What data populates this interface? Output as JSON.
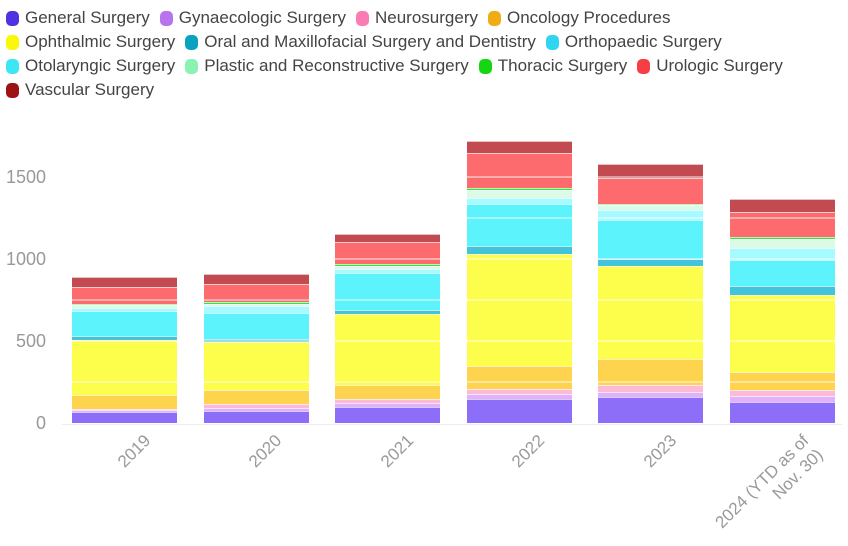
{
  "chart_data": {
    "type": "bar",
    "stacked": true,
    "title": "",
    "xlabel": "",
    "ylabel": "",
    "categories": [
      "2019",
      "2020",
      "2021",
      "2022",
      "2023",
      "2024 (YTD as of Nov. 30)"
    ],
    "series": [
      {
        "name": "General Surgery",
        "color": "#5132e0",
        "bar_color": "#8d6ef8",
        "values": [
          67,
          73,
          97,
          148,
          158,
          130
        ]
      },
      {
        "name": "Gynaecologic Surgery",
        "color": "#b873ee",
        "bar_color": "#e2b2f8",
        "values": [
          11,
          21,
          27,
          30,
          30,
          34
        ]
      },
      {
        "name": "Neurosurgery",
        "color": "#fa7cb3",
        "bar_color": "#fcbad7",
        "values": [
          10,
          24,
          24,
          30,
          41,
          35
        ]
      },
      {
        "name": "Oncology Procedures",
        "color": "#f0ac15",
        "bar_color": "#fed34d",
        "values": [
          81,
          81,
          81,
          142,
          162,
          111
        ]
      },
      {
        "name": "Ophthalmic Surgery",
        "color": "#f8f807",
        "bar_color": "#fdfd4b",
        "values": [
          339,
          294,
          436,
          683,
          567,
          471
        ]
      },
      {
        "name": "Oral and Maxillofacial Surgery and Dentistry",
        "color": "#0aa2c0",
        "bar_color": "#42c5da",
        "values": [
          20,
          20,
          26,
          47,
          41,
          52
        ]
      },
      {
        "name": "Orthopaedic Surgery",
        "color": "#30d5f2",
        "bar_color": "#5df3fd",
        "values": [
          154,
          156,
          221,
          257,
          237,
          162
        ]
      },
      {
        "name": "Otolaryngic Surgery",
        "color": "#3ce6f3",
        "bar_color": "#a5fbff",
        "values": [
          22,
          47,
          27,
          35,
          61,
          75
        ]
      },
      {
        "name": "Plastic and Reconstructive Surgery",
        "color": "#8cf2b4",
        "bar_color": "#dcfbe7",
        "values": [
          14,
          12,
          18,
          49,
          30,
          51
        ]
      },
      {
        "name": "Thoracic Surgery",
        "color": "#16d614",
        "bar_color": "#39e23e",
        "values": [
          6,
          7,
          12,
          14,
          6,
          16
        ]
      },
      {
        "name": "Urologic Surgery",
        "color": "#f63e44",
        "bar_color": "#fd6b6e",
        "values": [
          107,
          115,
          136,
          213,
          158,
          150
        ]
      },
      {
        "name": "Vascular Surgery",
        "color": "#9c1215",
        "bar_color": "#c14b50",
        "values": [
          60,
          61,
          50,
          71,
          91,
          77
        ]
      }
    ],
    "y_ticks": [
      0,
      500,
      1000,
      1500
    ],
    "ylim": [
      0,
      1750
    ],
    "legend_position": "top",
    "grid": true,
    "gridline_step": 250
  },
  "style": {
    "axis_text_color": "#999999",
    "legend_text_color": "#444444",
    "background": "#ffffff"
  }
}
